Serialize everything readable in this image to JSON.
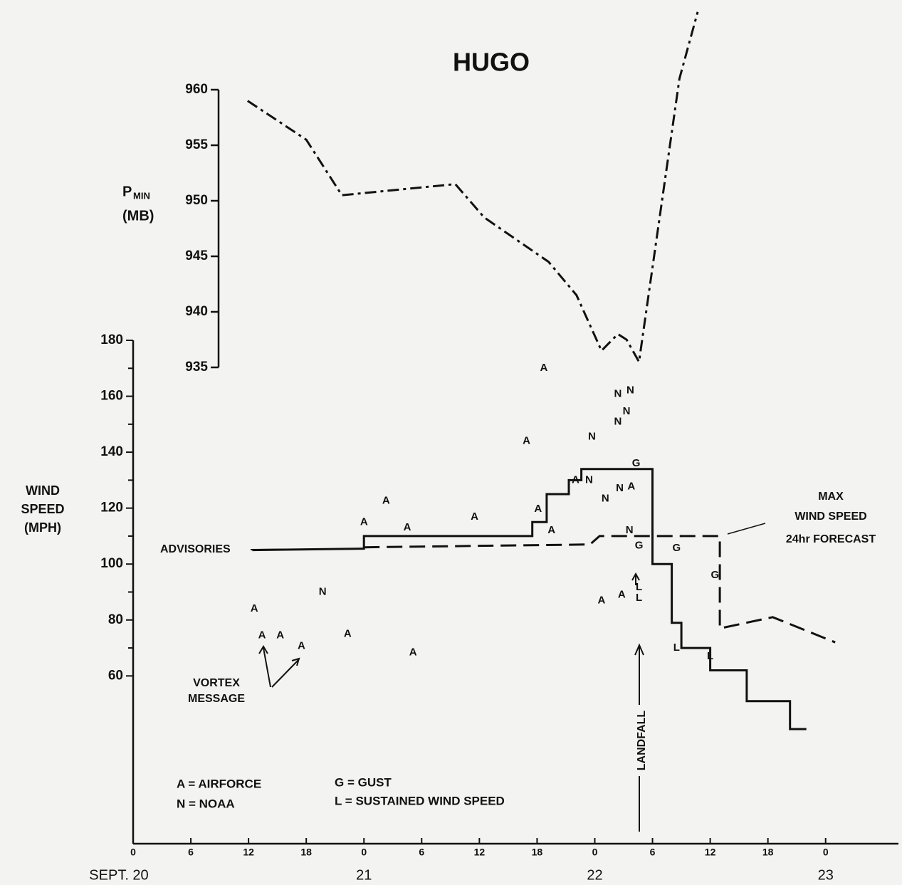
{
  "chart_data": {
    "type": "line",
    "title": "HUGO",
    "ylabel_lines": [
      "WIND",
      "SPEED",
      "(MPH)"
    ],
    "y2label": {
      "main": "P",
      "sub": "MIN",
      "unit": "(MB)"
    },
    "xlim": [
      0,
      79
    ],
    "xticks": [
      {
        "value": 0,
        "label": "0"
      },
      {
        "value": 6,
        "label": "6"
      },
      {
        "value": 12,
        "label": "12"
      },
      {
        "value": 18,
        "label": "18"
      },
      {
        "value": 24,
        "label": "0"
      },
      {
        "value": 30,
        "label": "6"
      },
      {
        "value": 36,
        "label": "12"
      },
      {
        "value": 42,
        "label": "18"
      },
      {
        "value": 48,
        "label": "0"
      },
      {
        "value": 54,
        "label": "6"
      },
      {
        "value": 60,
        "label": "12"
      },
      {
        "value": 66,
        "label": "18"
      },
      {
        "value": 72,
        "label": "0"
      }
    ],
    "day_labels": [
      {
        "value": 0,
        "label": "SEPT. 20"
      },
      {
        "value": 24,
        "label": "21"
      },
      {
        "value": 48,
        "label": "22"
      },
      {
        "value": 72,
        "label": "23"
      }
    ],
    "ylim": [
      0,
      180
    ],
    "yticks": [
      60,
      80,
      100,
      120,
      140,
      160,
      180
    ],
    "yminor": [
      70,
      90,
      110,
      130,
      150,
      170
    ],
    "y2lim": [
      935,
      960
    ],
    "y2ticks": [
      935,
      940,
      945,
      950,
      955,
      960
    ],
    "series": [
      {
        "name": "ADVISORIES",
        "color": "#111111",
        "style": "solid",
        "x": [
          12.4,
          24,
          24,
          41.5,
          41.5,
          43,
          43,
          45.3,
          45.3,
          46.6,
          46.6,
          54,
          54,
          56,
          56,
          57,
          57,
          60,
          60,
          63.8,
          63.8,
          68.3,
          68.3,
          70
        ],
        "values": [
          105,
          105.5,
          110,
          110,
          115,
          115,
          125,
          125,
          130,
          130,
          134,
          134,
          100,
          100,
          79,
          79,
          70,
          70,
          62,
          62,
          51,
          51,
          41,
          41
        ]
      },
      {
        "label_lines": [
          "MAX",
          "WIND SPEED",
          "24hr FORECAST"
        ],
        "color": "#111111",
        "style": "dashed",
        "x": [
          24,
          47.5,
          48.5,
          61,
          61,
          66.5,
          73
        ],
        "values": [
          106,
          107,
          110,
          110,
          77,
          81,
          72
        ]
      },
      {
        "color": "#111111",
        "style": "dashdot",
        "axis": "y2",
        "x": [
          11.9,
          18,
          21.7,
          33.5,
          36.5,
          43.2,
          46.1,
          48.7,
          50.4,
          51.3,
          52.6,
          56.8,
          58.7
        ],
        "values": [
          959,
          955.5,
          950.5,
          951.5,
          948.5,
          944.5,
          941.5,
          936.5,
          938,
          937.5,
          935.5,
          961,
          967
        ]
      }
    ],
    "points": [
      {
        "name": "A",
        "x": [
          12.6,
          13.4,
          15.3,
          17.5,
          22.3,
          29.1,
          24,
          26.3,
          28.5,
          35.5,
          40.9,
          42.1,
          42.7,
          43.5,
          46,
          48.7,
          50.8,
          51.8
        ],
        "values": [
          84,
          74.5,
          74.5,
          70.7,
          75,
          68.4,
          115,
          122.6,
          113,
          116.8,
          144,
          119.6,
          170,
          112,
          130,
          87,
          89,
          127.7
        ]
      },
      {
        "name": "N",
        "x": [
          19.7,
          47.4,
          47.7,
          49.1,
          50.4,
          51.7,
          50.4,
          51.3,
          50.6,
          51.6
        ],
        "values": [
          90,
          130,
          145.5,
          123.4,
          160.8,
          162,
          150.9,
          154.5,
          127,
          112
        ]
      },
      {
        "name": "G",
        "x": [
          52.3,
          52.6,
          56.5,
          60.5
        ],
        "values": [
          135.9,
          106.6,
          105.6,
          96
        ]
      },
      {
        "name": "L",
        "x": [
          52.6,
          52.6,
          56.5,
          60
        ],
        "values": [
          91.6,
          87.8,
          70,
          67
        ]
      }
    ],
    "annotations": {
      "advisories_pointer": "ADVISORIES",
      "vortex": [
        "VORTEX",
        "MESSAGE"
      ],
      "landfall": "LANDFALL"
    },
    "legend_notes": [
      "A = AIRFORCE",
      "N = NOAA",
      "G = GUST",
      "L = SUSTAINED WIND SPEED"
    ]
  }
}
